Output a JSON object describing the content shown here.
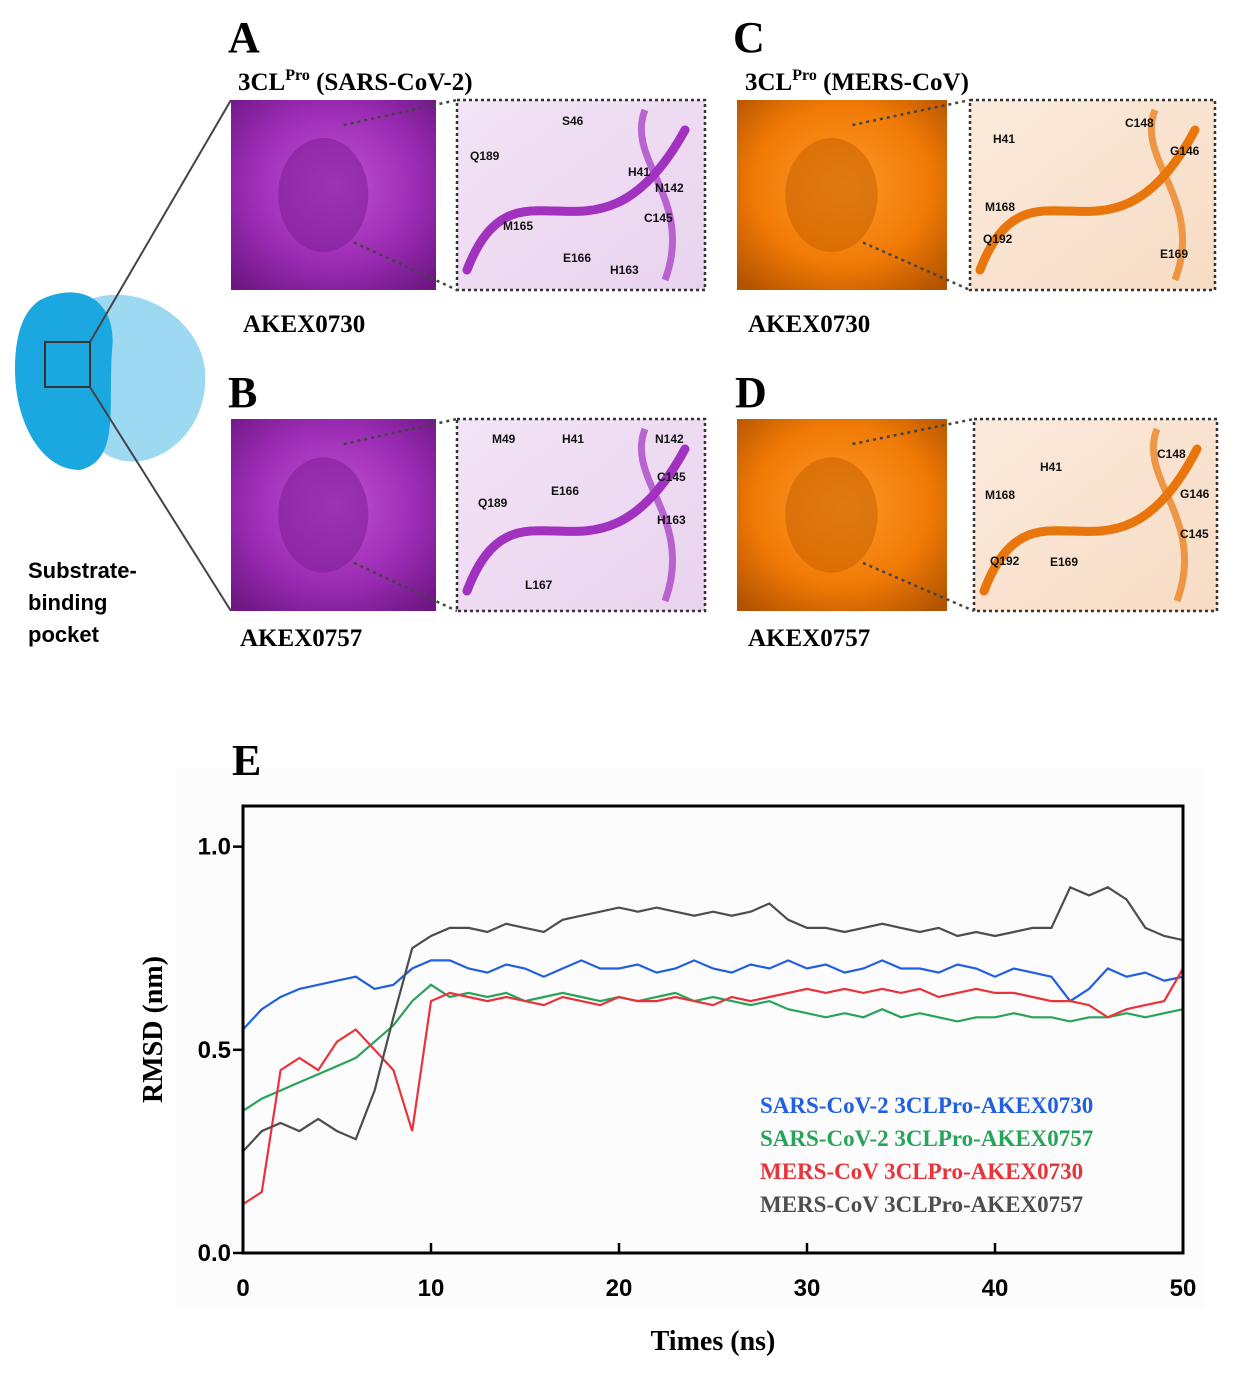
{
  "figure": {
    "overview": {
      "lines": [
        "Substrate-",
        "binding",
        "pocket"
      ]
    },
    "panels": [
      {
        "letter": "A",
        "title": {
          "main": "3CL",
          "sup": "Pro",
          "rest": " (SARS-CoV-2)"
        },
        "compound": "AKEX0730",
        "residues": [
          "S46",
          "Q189",
          "H41",
          "N142",
          "M165",
          "C145",
          "E166",
          "H163"
        ]
      },
      {
        "letter": "B",
        "compound": "AKEX0757",
        "residues": [
          "M49",
          "H41",
          "N142",
          "Q189",
          "E166",
          "C145",
          "H163",
          "L167"
        ]
      },
      {
        "letter": "C",
        "title": {
          "main": "3CL",
          "sup": "Pro",
          "rest": " (MERS-CoV)"
        },
        "compound": "AKEX0730",
        "residues": [
          "H41",
          "C148",
          "G146",
          "M168",
          "Q192",
          "E169"
        ]
      },
      {
        "letter": "D",
        "compound": "AKEX0757",
        "residues": [
          "H41",
          "C148",
          "M168",
          "G146",
          "C145",
          "Q192",
          "E169"
        ]
      }
    ]
  },
  "chart_data": {
    "type": "line",
    "panel_label": "E",
    "x_label": "Times (ns)",
    "y_label": "RMSD (nm)",
    "xlim": [
      0,
      50
    ],
    "ylim": [
      0,
      1.1
    ],
    "xticks": [
      0,
      10,
      20,
      30,
      40,
      50
    ],
    "yticks": [
      {
        "value": 0,
        "label": "0.0"
      },
      {
        "value": 0.5,
        "label": "0.5"
      },
      {
        "value": 1.0,
        "label": "1.0"
      }
    ],
    "x": [
      0,
      1,
      2,
      3,
      4,
      5,
      6,
      7,
      8,
      9,
      10,
      11,
      12,
      13,
      14,
      15,
      16,
      17,
      18,
      19,
      20,
      21,
      22,
      23,
      24,
      25,
      26,
      27,
      28,
      29,
      30,
      31,
      32,
      33,
      34,
      35,
      36,
      37,
      38,
      39,
      40,
      41,
      42,
      43,
      44,
      45,
      46,
      47,
      48,
      49,
      50
    ],
    "series": [
      {
        "name": "SARS-CoV-2 3CLPro-AKEX0730",
        "color": "#1f5fe0",
        "values": [
          0.55,
          0.6,
          0.63,
          0.65,
          0.66,
          0.67,
          0.68,
          0.65,
          0.66,
          0.7,
          0.72,
          0.72,
          0.7,
          0.69,
          0.71,
          0.7,
          0.68,
          0.7,
          0.72,
          0.7,
          0.7,
          0.71,
          0.69,
          0.7,
          0.72,
          0.7,
          0.69,
          0.71,
          0.7,
          0.72,
          0.7,
          0.71,
          0.69,
          0.7,
          0.72,
          0.7,
          0.7,
          0.69,
          0.71,
          0.7,
          0.68,
          0.7,
          0.69,
          0.68,
          0.62,
          0.65,
          0.7,
          0.68,
          0.69,
          0.67,
          0.68
        ]
      },
      {
        "name": "SARS-CoV-2 3CLPro-AKEX0757",
        "color": "#27a35a",
        "values": [
          0.35,
          0.38,
          0.4,
          0.42,
          0.44,
          0.46,
          0.48,
          0.52,
          0.56,
          0.62,
          0.66,
          0.63,
          0.64,
          0.63,
          0.64,
          0.62,
          0.63,
          0.64,
          0.63,
          0.62,
          0.63,
          0.62,
          0.63,
          0.64,
          0.62,
          0.63,
          0.62,
          0.61,
          0.62,
          0.6,
          0.59,
          0.58,
          0.59,
          0.58,
          0.6,
          0.58,
          0.59,
          0.58,
          0.57,
          0.58,
          0.58,
          0.59,
          0.58,
          0.58,
          0.57,
          0.58,
          0.58,
          0.59,
          0.58,
          0.59,
          0.6
        ]
      },
      {
        "name": "MERS-CoV 3CLPro-AKEX0730",
        "color": "#e8333a",
        "values": [
          0.12,
          0.15,
          0.45,
          0.48,
          0.45,
          0.52,
          0.55,
          0.5,
          0.45,
          0.3,
          0.62,
          0.64,
          0.63,
          0.62,
          0.63,
          0.62,
          0.61,
          0.63,
          0.62,
          0.61,
          0.63,
          0.62,
          0.62,
          0.63,
          0.62,
          0.61,
          0.63,
          0.62,
          0.63,
          0.64,
          0.65,
          0.64,
          0.65,
          0.64,
          0.65,
          0.64,
          0.65,
          0.63,
          0.64,
          0.65,
          0.64,
          0.64,
          0.63,
          0.62,
          0.62,
          0.61,
          0.58,
          0.6,
          0.61,
          0.62,
          0.7
        ]
      },
      {
        "name": "MERS-CoV 3CLPro-AKEX0757",
        "color": "#4d4d4d",
        "values": [
          0.25,
          0.3,
          0.32,
          0.3,
          0.33,
          0.3,
          0.28,
          0.4,
          0.58,
          0.75,
          0.78,
          0.8,
          0.8,
          0.79,
          0.81,
          0.8,
          0.79,
          0.82,
          0.83,
          0.84,
          0.85,
          0.84,
          0.85,
          0.84,
          0.83,
          0.84,
          0.83,
          0.84,
          0.86,
          0.82,
          0.8,
          0.8,
          0.79,
          0.8,
          0.81,
          0.8,
          0.79,
          0.8,
          0.78,
          0.79,
          0.78,
          0.79,
          0.8,
          0.8,
          0.9,
          0.88,
          0.9,
          0.87,
          0.8,
          0.78,
          0.77
        ]
      }
    ]
  }
}
